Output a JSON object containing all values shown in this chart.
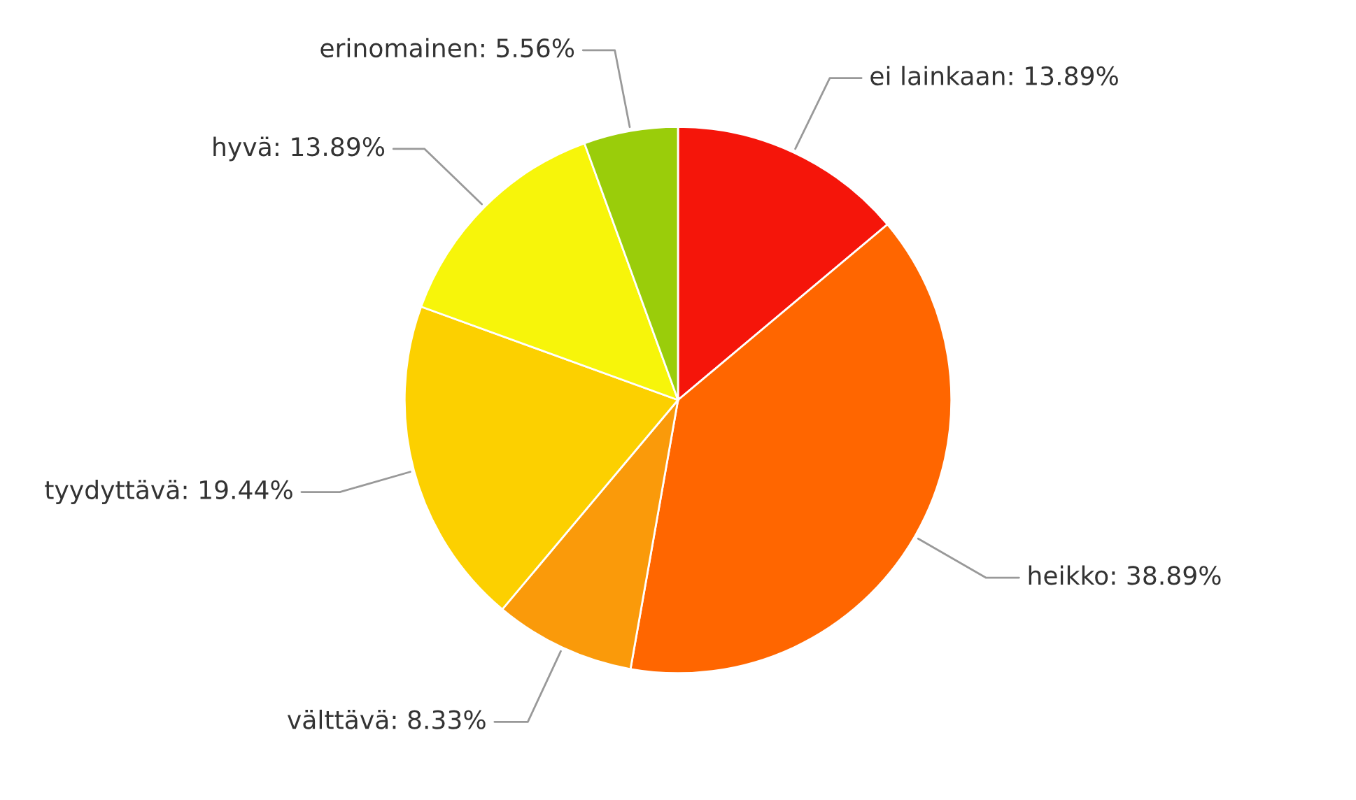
{
  "chart_data": {
    "type": "pie",
    "categories": [
      "ei lainkaan",
      "heikko",
      "välttävä",
      "tyydyttävä",
      "hyvä",
      "erinomainen"
    ],
    "values": [
      13.89,
      38.89,
      8.33,
      19.44,
      13.89,
      5.56
    ],
    "value_labels": [
      "13.89%",
      "38.89%",
      "8.33%",
      "19.44%",
      "13.89%",
      "5.56%"
    ],
    "colors": [
      "#f5150a",
      "#ff6600",
      "#fa9a0a",
      "#fcd000",
      "#f7f50a",
      "#9acd0a"
    ]
  }
}
